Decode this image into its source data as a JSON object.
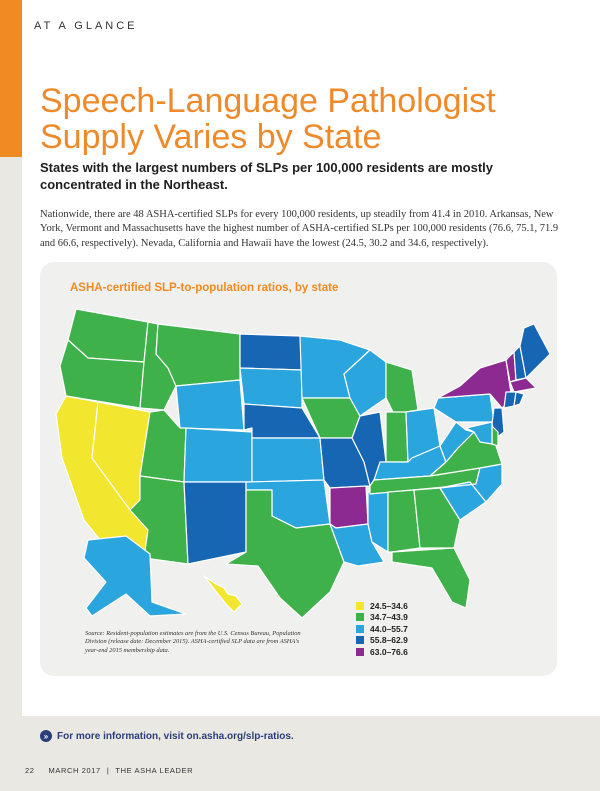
{
  "header": {
    "section_label": "AT A GLANCE",
    "title_line1": "Speech-Language Pathologist",
    "title_line2": "Supply Varies by State",
    "subhead": "States with the largest numbers of SLPs per 100,000 residents are mostly concentrated in the Northeast."
  },
  "body": "Nationwide, there are 48 ASHA-certified SLPs for every 100,000 residents, up steadily from 41.4 in 2010. Arkansas, New York, Vermont and Massachusetts have the highest number of ASHA-certified SLPs per 100,000 residents (76.6, 75.1, 71.9 and 66.6, respectively). Nevada, California and Hawaii have the lowest (24.5, 30.2 and 34.6, respectively).",
  "map": {
    "title": "ASHA-certified SLP-to-population ratios, by state",
    "source_note": "Source: Resident-population estimates are from the U.S. Census Bureau, Population Division (release date: December 2015). ASHA-certified SLP data are from ASHA's year-end 2015 membership data.",
    "legend": [
      {
        "label": "24.5–34.6",
        "color": "#f2e62f"
      },
      {
        "label": "34.7–43.9",
        "color": "#3fb14a"
      },
      {
        "label": "44.0–55.7",
        "color": "#2aa5de"
      },
      {
        "label": "55.8–62.9",
        "color": "#1666b3"
      },
      {
        "label": "63.0–76.6",
        "color": "#8c2a92"
      }
    ],
    "states": [
      {
        "name": "WA",
        "bin": 1
      },
      {
        "name": "OR",
        "bin": 1
      },
      {
        "name": "CA",
        "bin": 0
      },
      {
        "name": "NV",
        "bin": 0
      },
      {
        "name": "ID",
        "bin": 1
      },
      {
        "name": "MT",
        "bin": 1
      },
      {
        "name": "WY",
        "bin": 2
      },
      {
        "name": "UT",
        "bin": 1
      },
      {
        "name": "AZ",
        "bin": 1
      },
      {
        "name": "CO",
        "bin": 2
      },
      {
        "name": "NM",
        "bin": 3
      },
      {
        "name": "ND",
        "bin": 3
      },
      {
        "name": "SD",
        "bin": 2
      },
      {
        "name": "NE",
        "bin": 3
      },
      {
        "name": "KS",
        "bin": 2
      },
      {
        "name": "OK",
        "bin": 2
      },
      {
        "name": "TX",
        "bin": 1
      },
      {
        "name": "MN",
        "bin": 2
      },
      {
        "name": "IA",
        "bin": 1
      },
      {
        "name": "MO",
        "bin": 3
      },
      {
        "name": "AR",
        "bin": 4
      },
      {
        "name": "LA",
        "bin": 2
      },
      {
        "name": "WI",
        "bin": 2
      },
      {
        "name": "IL",
        "bin": 3
      },
      {
        "name": "MS",
        "bin": 2
      },
      {
        "name": "MI",
        "bin": 1
      },
      {
        "name": "IN",
        "bin": 1
      },
      {
        "name": "OH",
        "bin": 2
      },
      {
        "name": "KY",
        "bin": 2
      },
      {
        "name": "TN",
        "bin": 1
      },
      {
        "name": "AL",
        "bin": 1
      },
      {
        "name": "GA",
        "bin": 1
      },
      {
        "name": "FL",
        "bin": 1
      },
      {
        "name": "SC",
        "bin": 2
      },
      {
        "name": "NC",
        "bin": 2
      },
      {
        "name": "VA",
        "bin": 1
      },
      {
        "name": "WV",
        "bin": 2
      },
      {
        "name": "PA",
        "bin": 2
      },
      {
        "name": "NY",
        "bin": 4
      },
      {
        "name": "VT",
        "bin": 4
      },
      {
        "name": "NH",
        "bin": 3
      },
      {
        "name": "ME",
        "bin": 3
      },
      {
        "name": "MA",
        "bin": 4
      },
      {
        "name": "CT",
        "bin": 3
      },
      {
        "name": "RI",
        "bin": 3
      },
      {
        "name": "NJ",
        "bin": 3
      },
      {
        "name": "DE",
        "bin": 1
      },
      {
        "name": "MD",
        "bin": 2
      },
      {
        "name": "AK",
        "bin": 2
      },
      {
        "name": "HI",
        "bin": 0
      }
    ]
  },
  "footer": {
    "link_icon": "double-chevron-icon",
    "link_text": "For more information, visit on.asha.org/slp-ratios.",
    "page_number": "22",
    "issue": "MARCH 2017",
    "separator": "|",
    "publication": "THE ASHA LEADER"
  }
}
